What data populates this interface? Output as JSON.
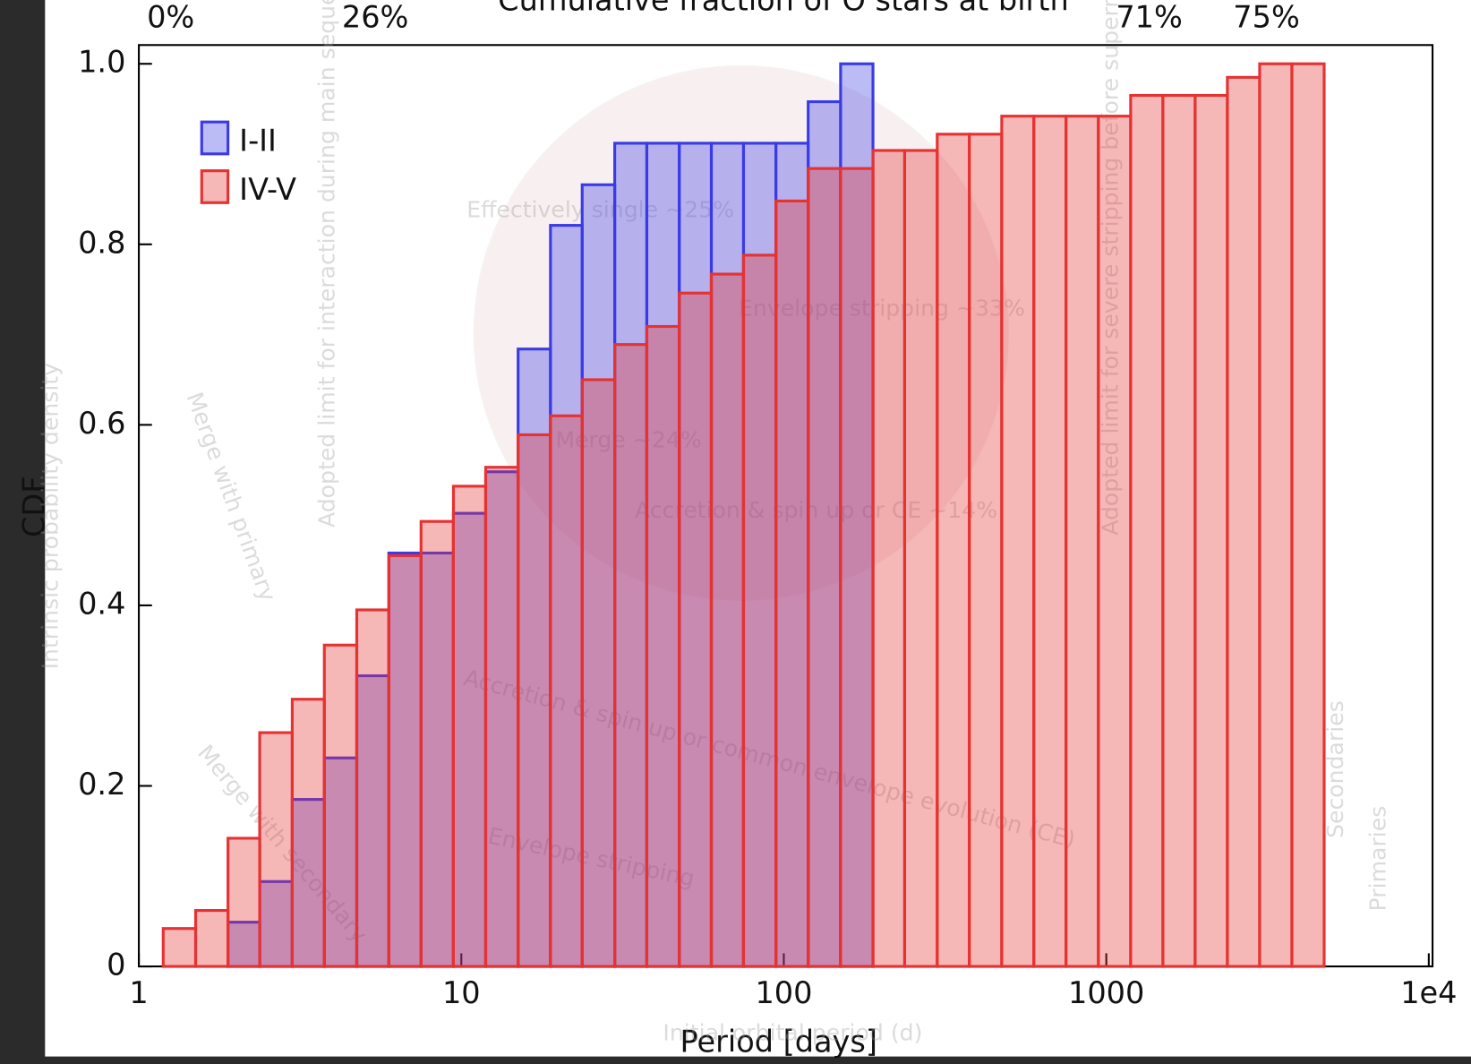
{
  "chart_data": {
    "type": "histogram",
    "title": "Cumulative fraction of O stars at birth",
    "x_label": "Period [days]",
    "y_label": "CDF",
    "top_labels": [
      "0%",
      "26%",
      "71%",
      "75%"
    ],
    "background_text": [
      "Adopted limit for interaction during main sequence",
      "Effectively single ~25%",
      "Envelope stripping ~33%",
      "Merge ~24%",
      "Accretion & spin up or CE ~14%",
      "Merge with primary",
      "Merge with secondary",
      "Accretion & spin up or common envelope evolution (CE)",
      "Envelope stripping",
      "Adopted limit for severe stripping before supernova",
      "Secondaries",
      "Primaries",
      "Initial orbital period (d)",
      "Intrinsic probability density"
    ],
    "log_x": true,
    "bins": [
      1.19,
      1.5,
      1.89,
      2.37,
      2.99,
      3.76,
      4.74,
      5.96,
      7.5,
      9.45,
      11.9,
      15,
      18.9,
      23.7,
      29.9,
      37.6,
      47.4,
      59.6,
      75,
      94.5,
      119,
      150,
      189,
      237,
      299,
      376,
      474,
      596,
      750,
      945,
      1190,
      1498,
      1886,
      2374,
      2989,
      3763,
      4737
    ],
    "series": [
      {
        "name": "I-II",
        "color": "#3b3be6",
        "values": [
          0,
          0,
          0.049,
          0.094,
          0.185,
          0.231,
          0.322,
          0.458,
          0.458,
          0.502,
          0.548,
          0.684,
          0.821,
          0.866,
          0.912,
          0.912,
          0.912,
          0.912,
          0.912,
          0.912,
          0.958,
          1.0,
          null,
          null,
          null,
          null,
          null,
          null,
          null,
          null,
          null,
          null,
          null,
          null,
          null,
          null
        ]
      },
      {
        "name": "IV-V",
        "color": "#e53232",
        "values": [
          0.042,
          0.062,
          0.142,
          0.259,
          0.296,
          0.356,
          0.395,
          0.455,
          0.493,
          0.532,
          0.553,
          0.589,
          0.61,
          0.65,
          0.689,
          0.709,
          0.746,
          0.767,
          0.788,
          0.848,
          0.884,
          0.884,
          0.904,
          0.904,
          0.922,
          0.922,
          0.942,
          0.942,
          0.942,
          0.942,
          0.965,
          0.965,
          0.965,
          0.985,
          1.0,
          1.0
        ]
      }
    ],
    "xlim": [
      1,
      10000
    ],
    "xticks": [
      1,
      10,
      100,
      1000,
      {
        "value": 10000,
        "label": "1e4"
      }
    ],
    "ylim": [
      0,
      1
    ],
    "yticks": [
      0,
      0.2,
      0.4,
      0.6,
      0.8,
      {
        "value": 1,
        "label": "1.0"
      }
    ],
    "legend": "upper left"
  }
}
